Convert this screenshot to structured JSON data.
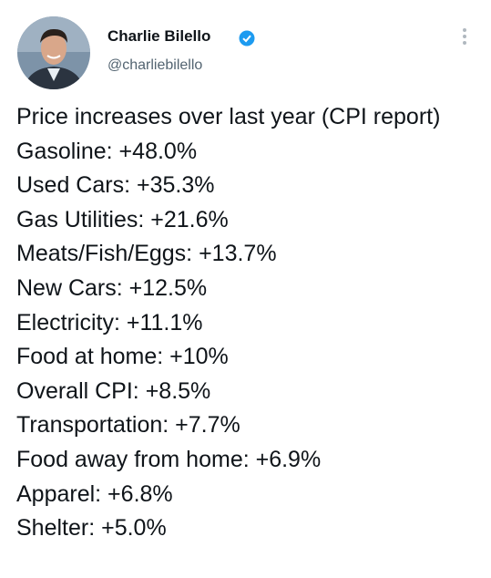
{
  "author": {
    "name": "Charlie Bilello",
    "handle": "@charliebilello"
  },
  "tweet": {
    "lines": [
      "Price increases over last year (CPI report)",
      "Gasoline: +48.0%",
      "Used Cars: +35.3%",
      "Gas Utilities: +21.6%",
      "Meats/Fish/Eggs: +13.7%",
      "New Cars: +12.5%",
      "Electricity: +11.1%",
      "Food at home: +10%",
      "Overall CPI: +8.5%",
      "Transportation: +7.7%",
      "Food away from home: +6.9%",
      "Apparel: +6.8%",
      "Shelter: +5.0%"
    ]
  }
}
